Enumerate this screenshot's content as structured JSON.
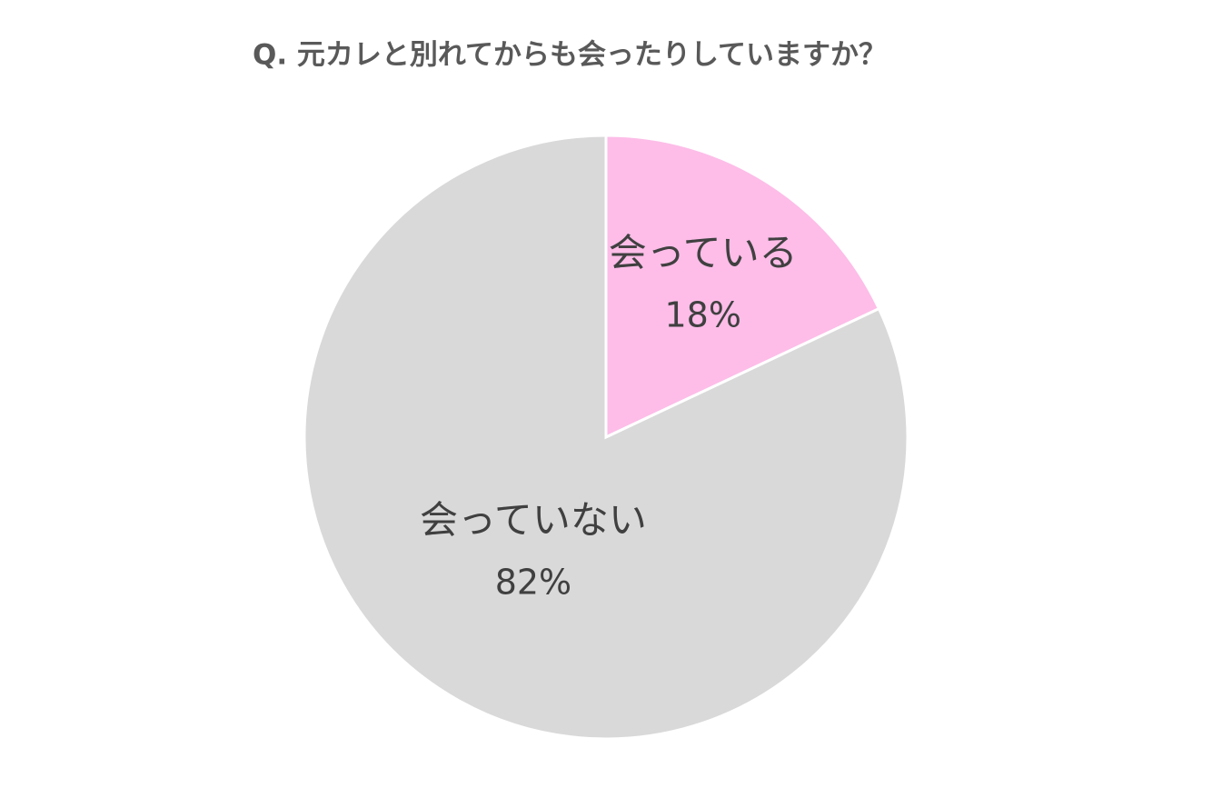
{
  "chart_data": {
    "type": "pie",
    "title": "Q. 元カレと別れてからも会ったりしていますか？",
    "categories": [
      "会っている",
      "会っていない"
    ],
    "values": [
      18,
      82
    ],
    "value_labels": [
      "18%",
      "82%"
    ],
    "colors": [
      "#fdbde8",
      "#d9d9d9"
    ]
  }
}
